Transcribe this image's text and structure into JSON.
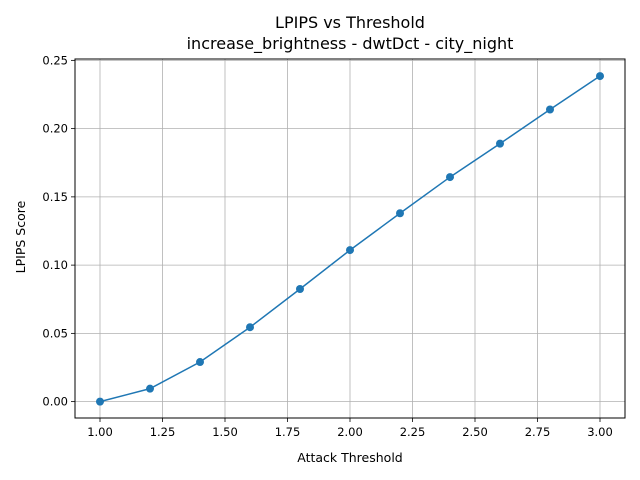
{
  "chart_data": {
    "type": "line",
    "title": "LPIPS vs Threshold",
    "subtitle": "increase_brightness - dwtDct - city_night",
    "xlabel": "Attack Threshold",
    "ylabel": "LPIPS Score",
    "xlim": [
      0.9,
      3.1
    ],
    "ylim": [
      -0.012,
      0.251
    ],
    "xticks": [
      1.0,
      1.25,
      1.5,
      1.75,
      2.0,
      2.25,
      2.5,
      2.75,
      3.0
    ],
    "xtick_labels": [
      "1.00",
      "1.25",
      "1.50",
      "1.75",
      "2.00",
      "2.25",
      "2.50",
      "2.75",
      "3.00"
    ],
    "yticks": [
      0.0,
      0.05,
      0.1,
      0.15,
      0.2,
      0.25
    ],
    "ytick_labels": [
      "0.00",
      "0.05",
      "0.10",
      "0.15",
      "0.20",
      "0.25"
    ],
    "grid": true,
    "color": "#1f77b4",
    "marker": "circle",
    "x": [
      1.0,
      1.2,
      1.4,
      1.6,
      1.8,
      2.0,
      2.2,
      2.4,
      2.6,
      2.8,
      3.0
    ],
    "y": [
      0.0,
      0.0095,
      0.029,
      0.0545,
      0.0825,
      0.111,
      0.138,
      0.1645,
      0.189,
      0.214,
      0.2385
    ]
  }
}
